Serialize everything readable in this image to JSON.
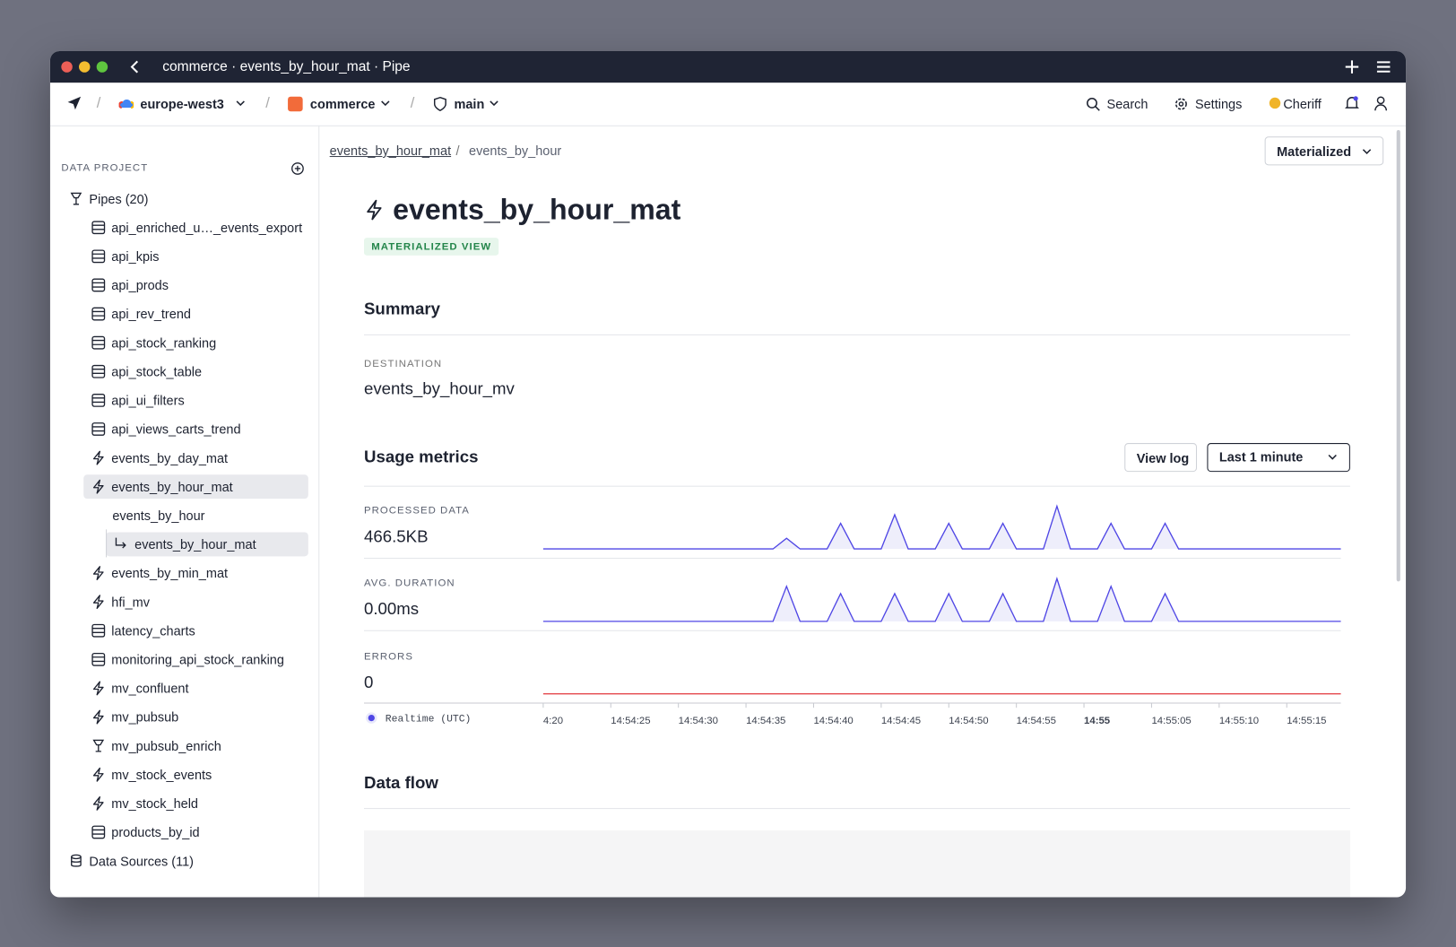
{
  "window": {
    "title": "commerce · events_by_hour_mat · Pipe"
  },
  "toolbar": {
    "region": "europe-west3",
    "workspace": "commerce",
    "branch": "main",
    "search": "Search",
    "settings": "Settings",
    "user": "Cheriff"
  },
  "sidebar": {
    "heading": "DATA PROJECT",
    "pipes_label": "Pipes (20)",
    "items": [
      {
        "label": "api_enriched_u…_events_export",
        "kind": "endpoint"
      },
      {
        "label": "api_kpis",
        "kind": "endpoint"
      },
      {
        "label": "api_prods",
        "kind": "endpoint"
      },
      {
        "label": "api_rev_trend",
        "kind": "endpoint"
      },
      {
        "label": "api_stock_ranking",
        "kind": "endpoint"
      },
      {
        "label": "api_stock_table",
        "kind": "endpoint"
      },
      {
        "label": "api_ui_filters",
        "kind": "endpoint"
      },
      {
        "label": "api_views_carts_trend",
        "kind": "endpoint"
      },
      {
        "label": "events_by_day_mat",
        "kind": "materialized"
      },
      {
        "label": "events_by_hour_mat",
        "kind": "materialized",
        "selected": true,
        "nodes": [
          {
            "label": "events_by_hour"
          },
          {
            "label": "events_by_hour_mat",
            "selected": true,
            "child": true
          }
        ]
      },
      {
        "label": "events_by_min_mat",
        "kind": "materialized"
      },
      {
        "label": "hfi_mv",
        "kind": "materialized"
      },
      {
        "label": "latency_charts",
        "kind": "endpoint"
      },
      {
        "label": "monitoring_api_stock_ranking",
        "kind": "endpoint"
      },
      {
        "label": "mv_confluent",
        "kind": "materialized"
      },
      {
        "label": "mv_pubsub",
        "kind": "materialized"
      },
      {
        "label": "mv_pubsub_enrich",
        "kind": "sink"
      },
      {
        "label": "mv_stock_events",
        "kind": "materialized"
      },
      {
        "label": "mv_stock_held",
        "kind": "materialized"
      },
      {
        "label": "products_by_id",
        "kind": "endpoint"
      }
    ],
    "datasources_label": "Data Sources (11)"
  },
  "breadcrumb": [
    "events_by_hour_mat",
    "events_by_hour"
  ],
  "mode_button": "Materialized",
  "page": {
    "title": "events_by_hour_mat",
    "badge": "MATERIALIZED VIEW",
    "summary_heading": "Summary",
    "destination_label": "DESTINATION",
    "destination": "events_by_hour_mv",
    "usage_heading": "Usage metrics",
    "view_log": "View log",
    "range": "Last 1 minute",
    "dataflow_heading": "Data flow"
  },
  "chart_data": {
    "type": "line",
    "legend": "Realtime (UTC)",
    "xticks": [
      {
        "value": 0,
        "label": "4:20"
      },
      {
        "value": 5,
        "label": "14:54:25"
      },
      {
        "value": 10,
        "label": "14:54:30"
      },
      {
        "value": 15,
        "label": "14:54:35"
      },
      {
        "value": 20,
        "label": "14:54:40"
      },
      {
        "value": 25,
        "label": "14:54:45"
      },
      {
        "value": 30,
        "label": "14:54:50"
      },
      {
        "value": 35,
        "label": "14:54:55"
      },
      {
        "value": 40,
        "label": "14:55",
        "bold": true
      },
      {
        "value": 45,
        "label": "14:55:05"
      },
      {
        "value": 50,
        "label": "14:55:10"
      },
      {
        "value": 55,
        "label": "14:55:15"
      }
    ],
    "series": [
      {
        "name": "PROCESSED DATA",
        "value_label": "466.5KB",
        "color": "#4f46e5",
        "fill": "#eeeefb",
        "values": [
          0,
          0,
          0,
          0,
          0,
          0,
          0,
          0,
          0,
          0,
          0,
          0,
          0,
          0,
          0,
          0,
          0,
          0,
          0.25,
          0,
          0,
          0,
          0.6,
          0,
          0,
          0,
          0.8,
          0,
          0,
          0,
          0.6,
          0,
          0,
          0,
          0.6,
          0,
          0,
          0,
          1,
          0,
          0,
          0,
          0.6,
          0,
          0,
          0,
          0.6,
          0,
          0,
          0,
          0,
          0,
          0,
          0,
          0,
          0,
          0,
          0,
          0,
          0
        ]
      },
      {
        "name": "AVG. DURATION",
        "value_label": "0.00ms",
        "color": "#4f46e5",
        "fill": "#eeeefb",
        "values": [
          0,
          0,
          0,
          0,
          0,
          0,
          0,
          0,
          0,
          0,
          0,
          0,
          0,
          0,
          0,
          0,
          0,
          0,
          0.82,
          0,
          0,
          0,
          0.65,
          0,
          0,
          0,
          0.65,
          0,
          0,
          0,
          0.65,
          0,
          0,
          0,
          0.65,
          0,
          0,
          0,
          1,
          0,
          0,
          0,
          0.82,
          0,
          0,
          0,
          0.65,
          0,
          0,
          0,
          0,
          0,
          0,
          0,
          0,
          0,
          0,
          0,
          0,
          0
        ]
      },
      {
        "name": "ERRORS",
        "value_label": "0",
        "color": "#e5484d",
        "values": [
          0,
          0,
          0,
          0,
          0,
          0,
          0,
          0,
          0,
          0,
          0,
          0,
          0,
          0,
          0,
          0,
          0,
          0,
          0,
          0,
          0,
          0,
          0,
          0,
          0,
          0,
          0,
          0,
          0,
          0,
          0,
          0,
          0,
          0,
          0,
          0,
          0,
          0,
          0,
          0,
          0,
          0,
          0,
          0,
          0,
          0,
          0,
          0,
          0,
          0,
          0,
          0,
          0,
          0,
          0,
          0,
          0,
          0,
          0,
          0
        ]
      }
    ]
  }
}
